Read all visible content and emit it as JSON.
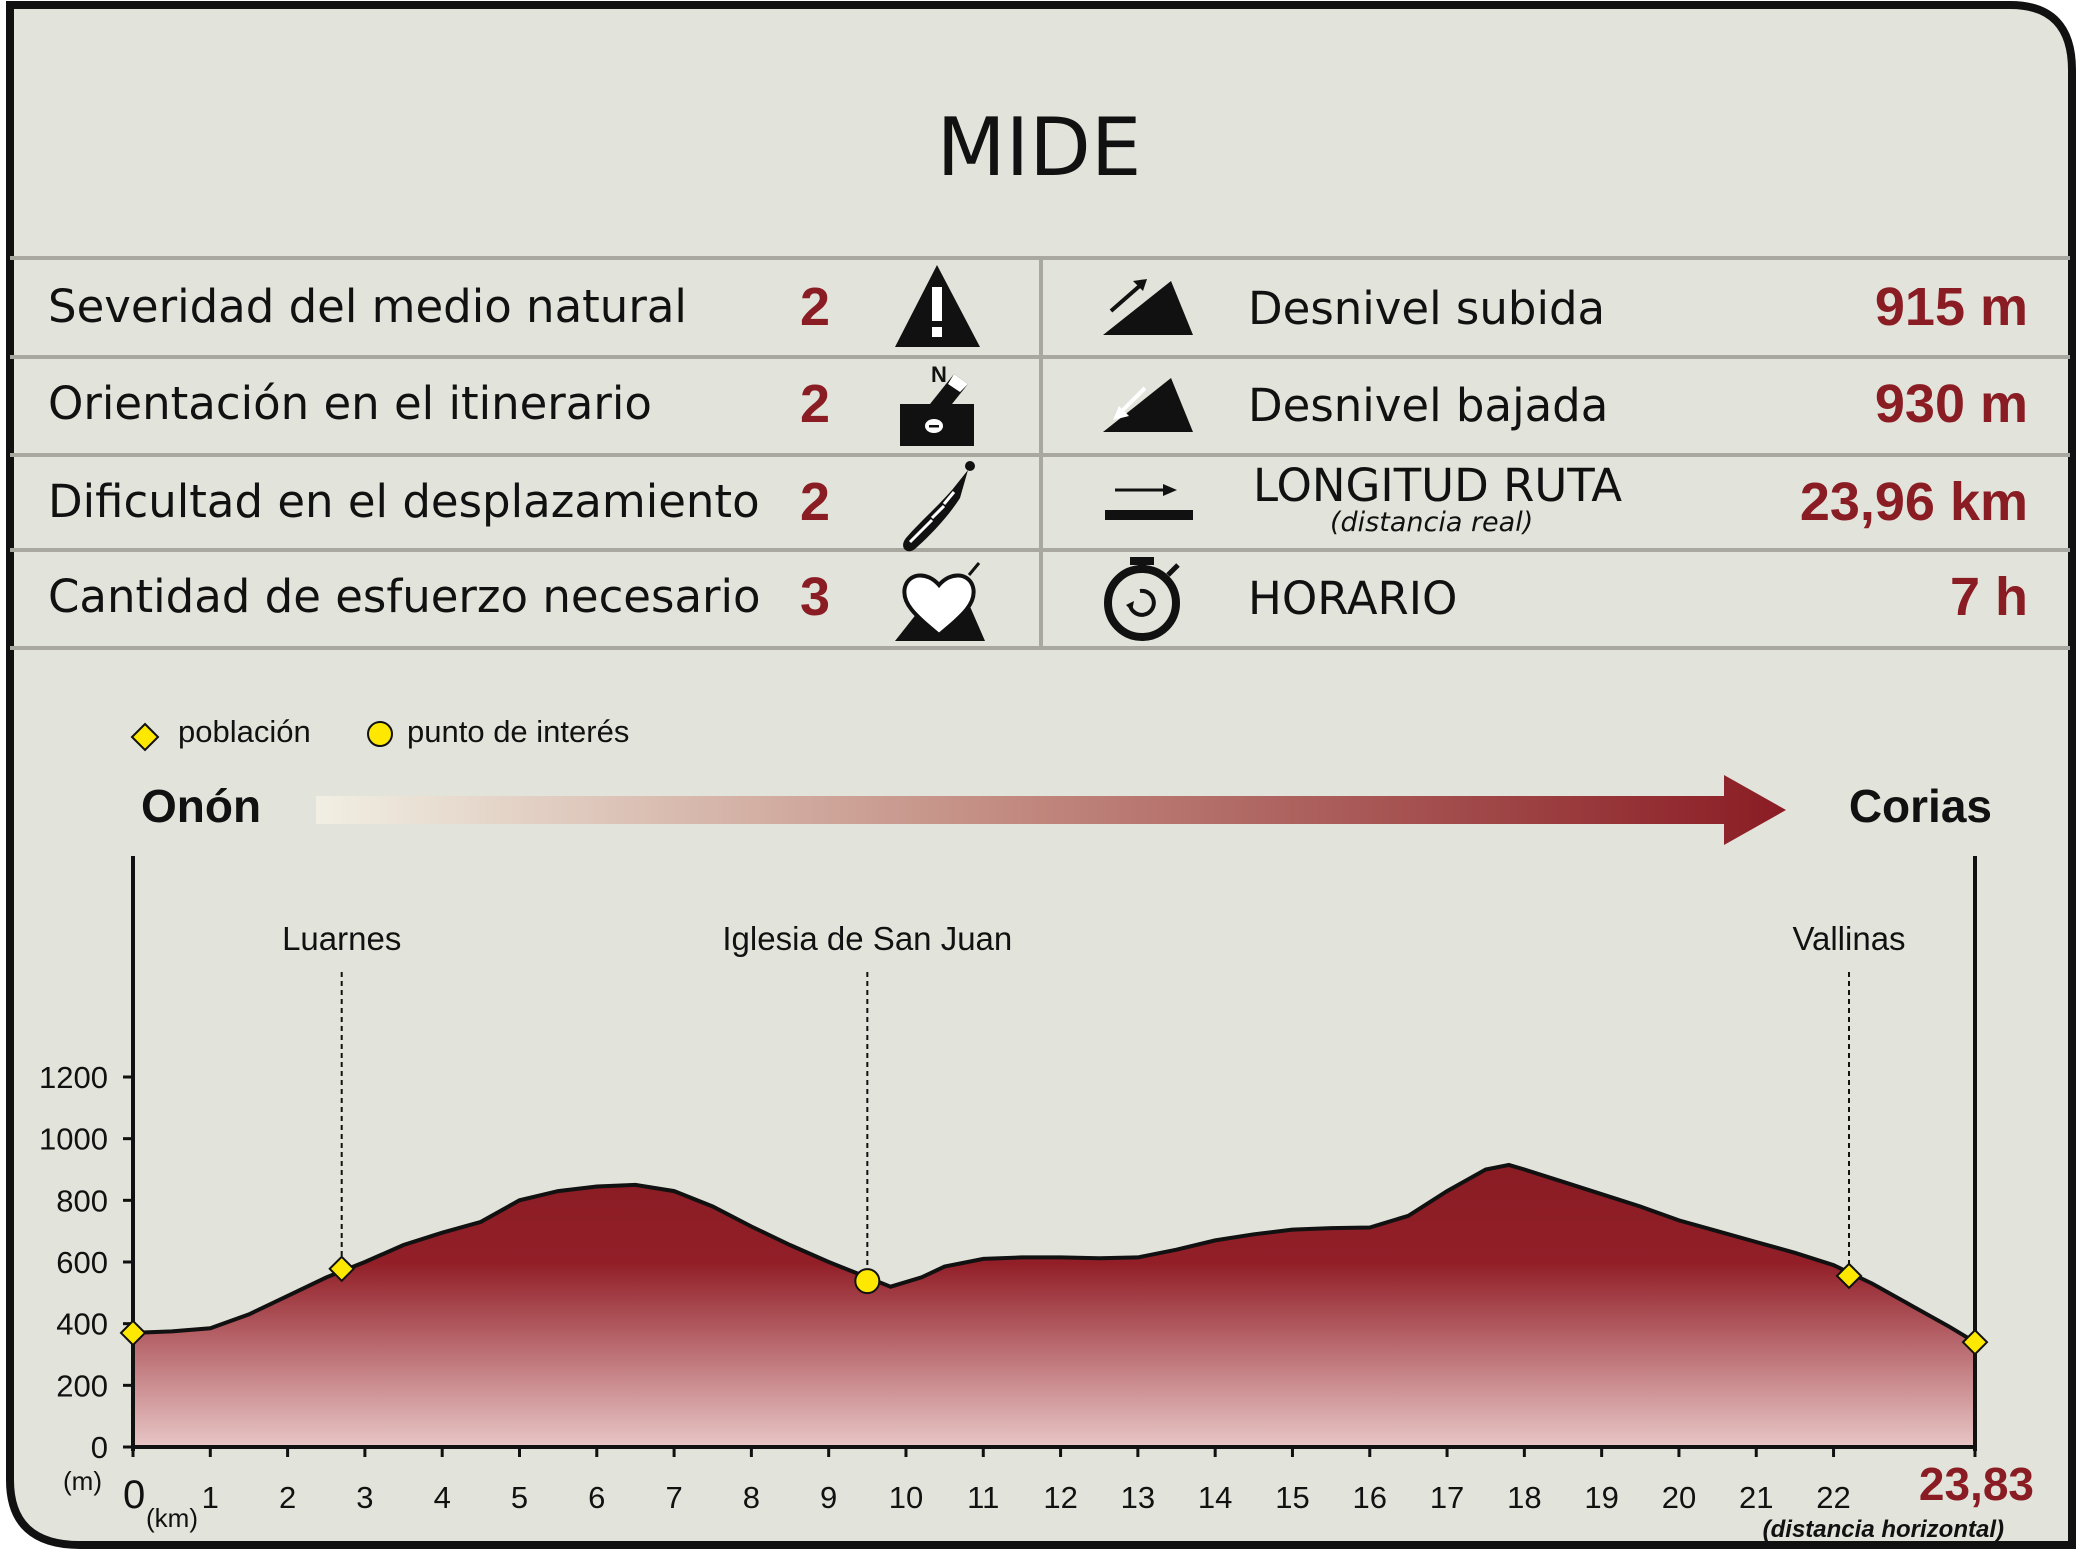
{
  "title": "MIDE",
  "mide_rows": [
    {
      "label": "Severidad del medio natural",
      "value": "2",
      "icon": "warning-triangle-icon"
    },
    {
      "label": "Orientación en el itinerario",
      "value": "2",
      "icon": "compass-orientation-icon"
    },
    {
      "label": "Dificultad en el desplazamiento",
      "value": "2",
      "icon": "footprint-icon"
    },
    {
      "label": "Cantidad de esfuerzo necesario",
      "value": "3",
      "icon": "heart-mountain-icon"
    }
  ],
  "route_rows": [
    {
      "label": "Desnivel subida",
      "sublabel": "",
      "value": "915 m",
      "icon": "ascent-slope-icon"
    },
    {
      "label": "Desnivel bajada",
      "sublabel": "",
      "value": "930 m",
      "icon": "descent-slope-icon"
    },
    {
      "label": "LONGITUD RUTA",
      "sublabel": "(distancia real)",
      "value": "23,96 km",
      "icon": "distance-arrow-icon"
    },
    {
      "label": "HORARIO",
      "sublabel": "",
      "value": "7 h",
      "icon": "stopwatch-icon"
    }
  ],
  "legend": {
    "town": "población",
    "poi": "punto de interés"
  },
  "start": "Onón",
  "end": "Corias",
  "colors": {
    "accent": "#8a1c24",
    "marker": "#ffe800",
    "background": "#e2e3da"
  },
  "chart_data": {
    "type": "area",
    "xlabel": "(km)",
    "ylabel": "(m)",
    "xlim": [
      0,
      23.83
    ],
    "ylim": [
      0,
      1200
    ],
    "x_ticks": [
      0,
      1,
      2,
      3,
      4,
      5,
      6,
      7,
      8,
      9,
      10,
      11,
      12,
      13,
      14,
      15,
      16,
      17,
      18,
      19,
      20,
      21,
      22
    ],
    "y_ticks": [
      0,
      200,
      400,
      600,
      800,
      1000,
      1200
    ],
    "end_distance": "23,83",
    "end_note": "(distancia horizontal)",
    "profile": [
      {
        "x": 0,
        "y": 370
      },
      {
        "x": 0.5,
        "y": 375
      },
      {
        "x": 1,
        "y": 385
      },
      {
        "x": 1.5,
        "y": 430
      },
      {
        "x": 2,
        "y": 490
      },
      {
        "x": 2.5,
        "y": 550
      },
      {
        "x": 3,
        "y": 600
      },
      {
        "x": 3.5,
        "y": 655
      },
      {
        "x": 4,
        "y": 695
      },
      {
        "x": 4.5,
        "y": 730
      },
      {
        "x": 5,
        "y": 800
      },
      {
        "x": 5.5,
        "y": 830
      },
      {
        "x": 6,
        "y": 845
      },
      {
        "x": 6.5,
        "y": 850
      },
      {
        "x": 7,
        "y": 830
      },
      {
        "x": 7.5,
        "y": 780
      },
      {
        "x": 8,
        "y": 715
      },
      {
        "x": 8.5,
        "y": 655
      },
      {
        "x": 9,
        "y": 600
      },
      {
        "x": 9.5,
        "y": 550
      },
      {
        "x": 9.8,
        "y": 520
      },
      {
        "x": 10.2,
        "y": 550
      },
      {
        "x": 10.5,
        "y": 585
      },
      {
        "x": 11,
        "y": 610
      },
      {
        "x": 11.5,
        "y": 615
      },
      {
        "x": 12,
        "y": 615
      },
      {
        "x": 12.5,
        "y": 612
      },
      {
        "x": 13,
        "y": 615
      },
      {
        "x": 13.5,
        "y": 640
      },
      {
        "x": 14,
        "y": 670
      },
      {
        "x": 14.5,
        "y": 690
      },
      {
        "x": 15,
        "y": 705
      },
      {
        "x": 15.5,
        "y": 710
      },
      {
        "x": 16,
        "y": 712
      },
      {
        "x": 16.5,
        "y": 750
      },
      {
        "x": 17,
        "y": 830
      },
      {
        "x": 17.5,
        "y": 900
      },
      {
        "x": 17.8,
        "y": 915
      },
      {
        "x": 18,
        "y": 900
      },
      {
        "x": 18.5,
        "y": 860
      },
      {
        "x": 19,
        "y": 820
      },
      {
        "x": 19.5,
        "y": 780
      },
      {
        "x": 20,
        "y": 735
      },
      {
        "x": 20.5,
        "y": 700
      },
      {
        "x": 21,
        "y": 665
      },
      {
        "x": 21.5,
        "y": 630
      },
      {
        "x": 22,
        "y": 590
      },
      {
        "x": 22.5,
        "y": 530
      },
      {
        "x": 23,
        "y": 460
      },
      {
        "x": 23.5,
        "y": 390
      },
      {
        "x": 23.83,
        "y": 340
      }
    ],
    "points": [
      {
        "name": "",
        "x": 0,
        "y": 370,
        "kind": "town"
      },
      {
        "name": "Luarnes",
        "x": 2.7,
        "y": 578,
        "kind": "town"
      },
      {
        "name": "Iglesia de San Juan",
        "x": 9.5,
        "y": 538,
        "kind": "poi"
      },
      {
        "name": "Vallinas",
        "x": 22.2,
        "y": 555,
        "kind": "town"
      },
      {
        "name": "",
        "x": 23.83,
        "y": 340,
        "kind": "town"
      }
    ]
  }
}
